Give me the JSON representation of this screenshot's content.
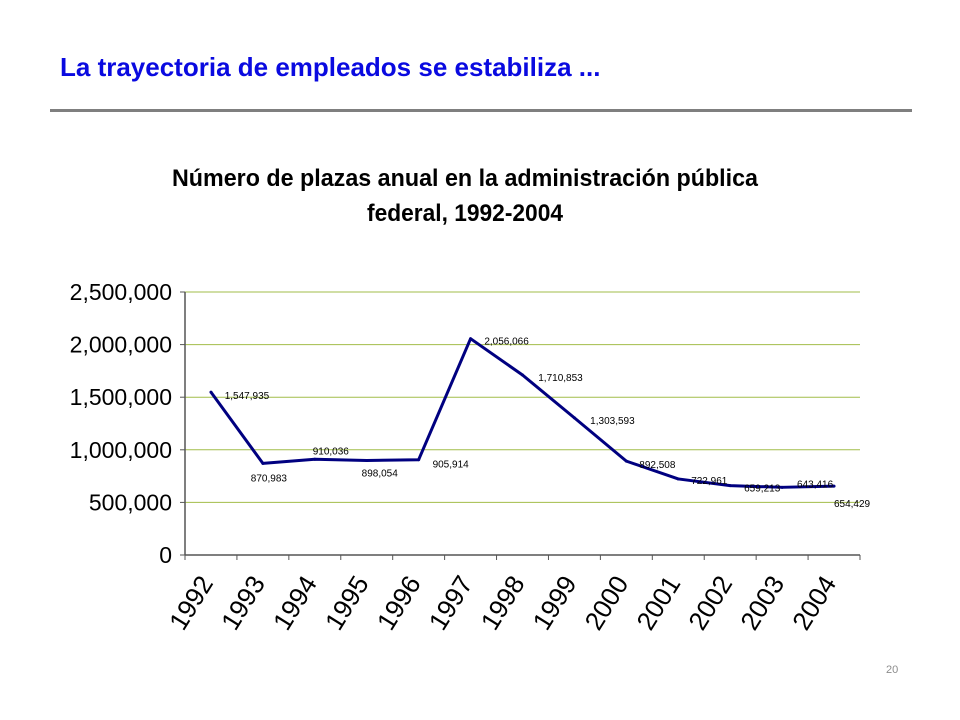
{
  "slide": {
    "title": "La trayectoria de empleados se estabiliza ...",
    "page_number": "20"
  },
  "colors": {
    "title": "#0a0ae0",
    "rule": "#7f7f7f",
    "line": "#000080",
    "grid": "#a2bd4a",
    "axis": "#555555"
  },
  "chart_data": {
    "type": "line",
    "title_lines": [
      "Número de plazas anual en la administración pública",
      "federal, 1992-2004"
    ],
    "categories": [
      "1992",
      "1993",
      "1994",
      "1995",
      "1996",
      "1997",
      "1998",
      "1999",
      "2000",
      "2001",
      "2002",
      "2003",
      "2004"
    ],
    "series": [
      {
        "values": [
          1547935,
          870983,
          910036,
          898054,
          905914,
          2056066,
          1710853,
          1303593,
          892508,
          722961,
          659213,
          643416,
          654429
        ],
        "labels": [
          "1,547,935",
          "870,983",
          "910,036",
          "898,054",
          "905,914",
          "2,056,066",
          "1,710,853",
          "1,303,593",
          "892,508",
          "722,961",
          "659,213",
          "643,416",
          "654,429"
        ]
      }
    ],
    "ylim": [
      0,
      2500000
    ],
    "yticks": [
      0,
      500000,
      1000000,
      1500000,
      2000000,
      2500000
    ],
    "ytick_labels": [
      "0",
      "500,000",
      "1,000,000",
      "1,500,000",
      "2,000,000",
      "2,500,000"
    ],
    "grid": true
  }
}
